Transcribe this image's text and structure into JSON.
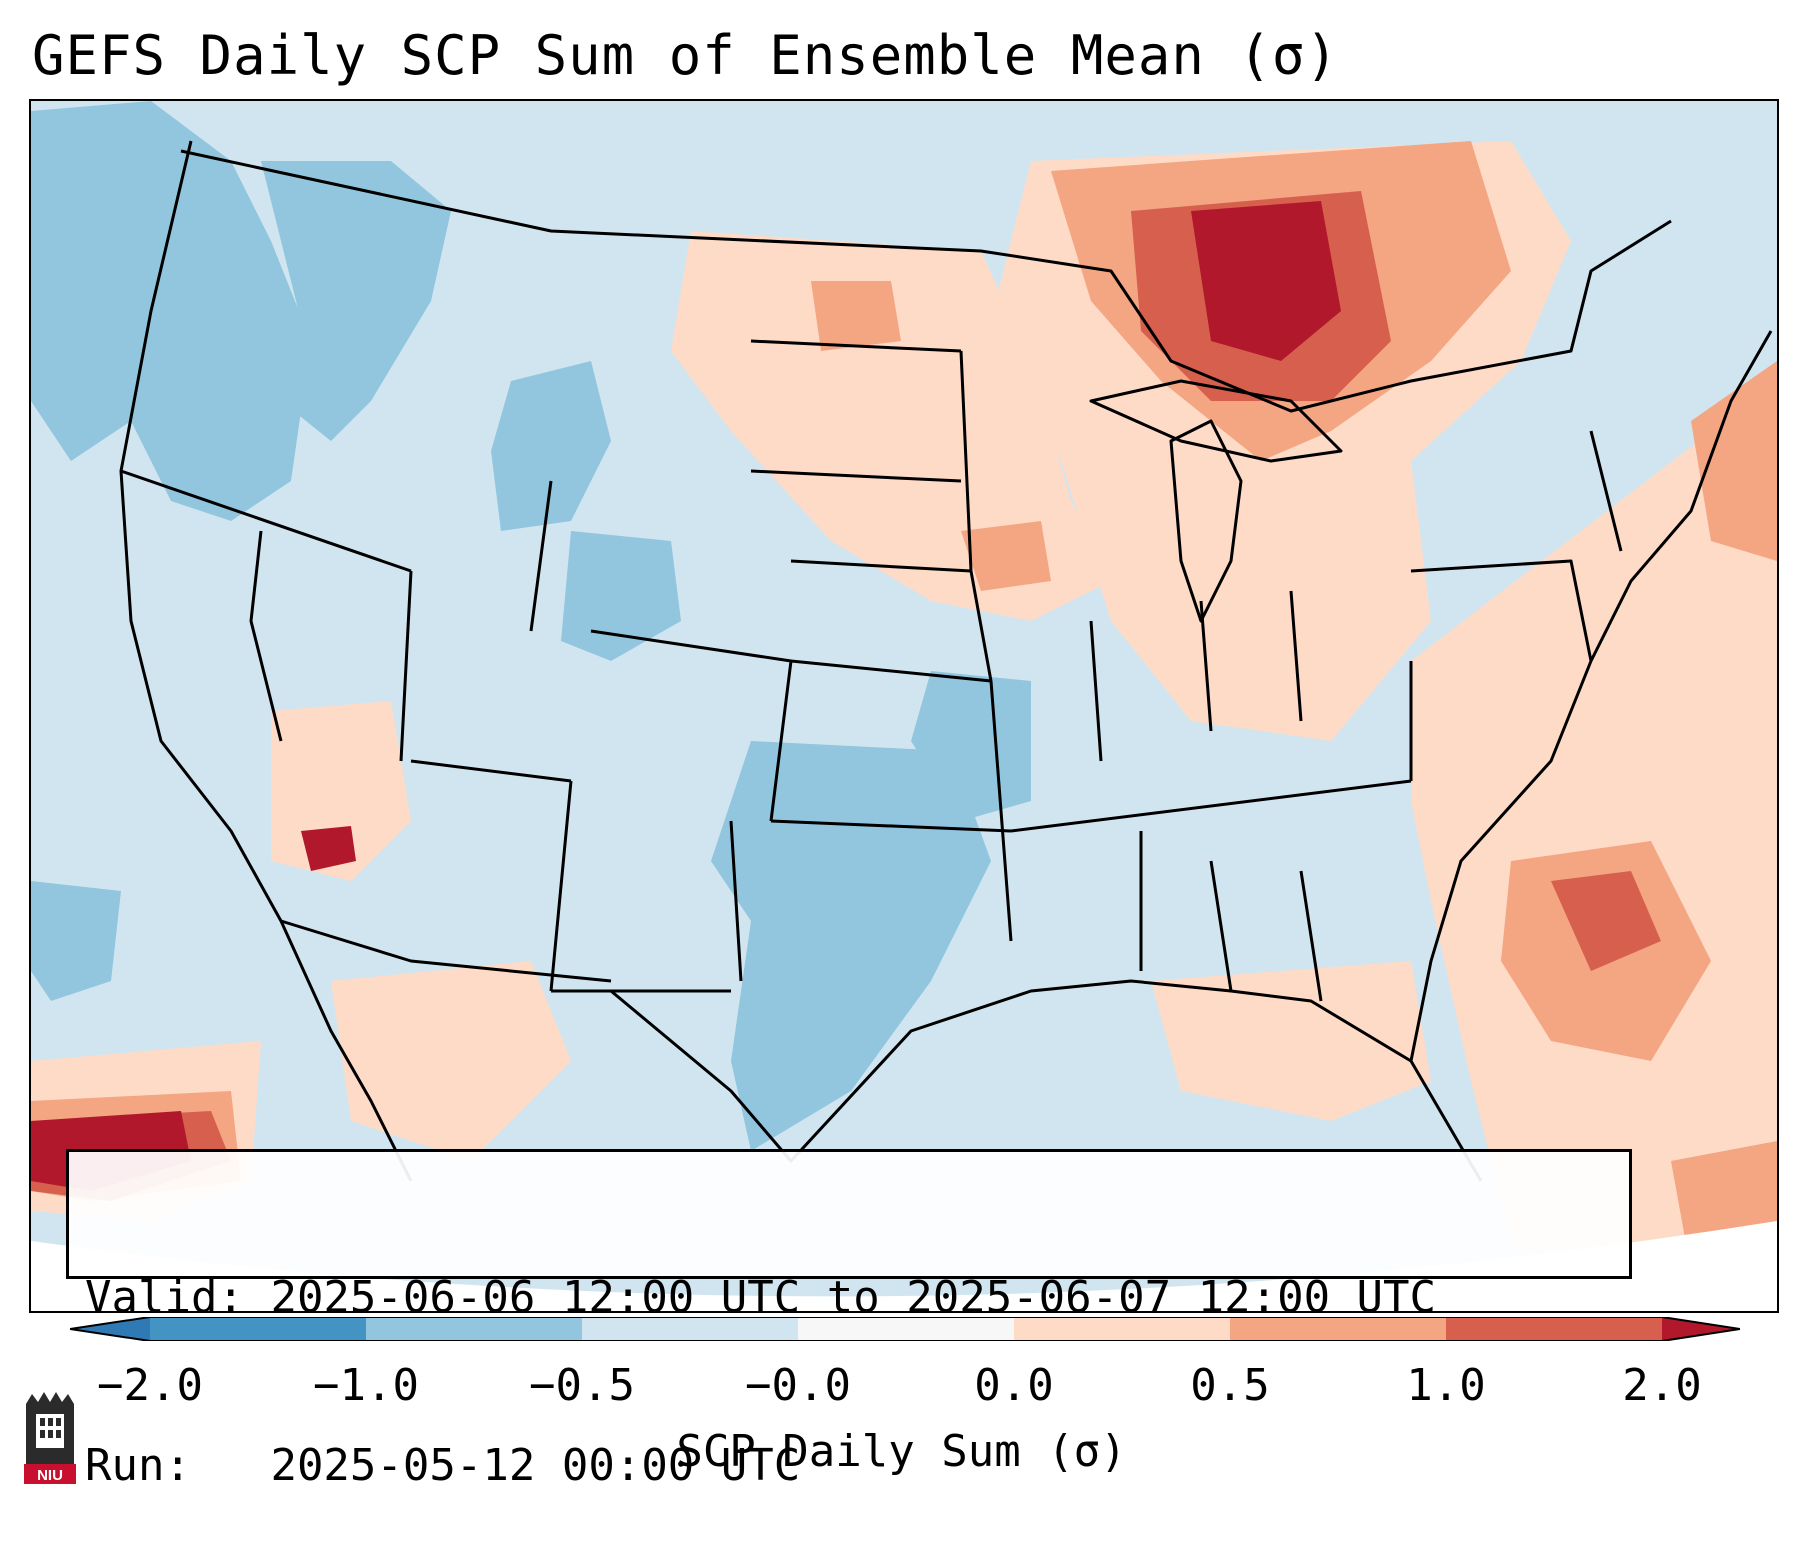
{
  "title": "GEFS Daily SCP Sum of Ensemble Mean (σ)",
  "info": {
    "valid_label": "Valid:",
    "valid_value": "2025-06-06 12:00 UTC to 2025-06-07 12:00 UTC",
    "run_label": "Run:",
    "run_value": "2025-05-12 00:00 UTC"
  },
  "colorbar": {
    "label": "SCP Daily Sum (σ)",
    "ticks": [
      "−2.0",
      "−1.0",
      "−0.5",
      "−0.0",
      "0.0",
      "0.5",
      "1.0",
      "2.0"
    ],
    "colors": {
      "extend_low": "#2f79b5",
      "bin_1": "#4393c3",
      "bin_2": "#92c5de",
      "bin_3": "#d1e5f0",
      "bin_4": "#f7f7f7",
      "bin_5": "#fddbc7",
      "bin_6": "#f4a582",
      "bin_7": "#d6604d",
      "extend_high": "#b2182b"
    }
  },
  "legend_colors": {
    "strong_positive": "#b2182b",
    "positive": "#d6604d",
    "weak_positive": "#f4a582",
    "slight_positive": "#fddbc7",
    "slight_negative": "#d1e5f0",
    "weak_negative": "#92c5de"
  },
  "logo": {
    "text": "NIU",
    "icon": "niu-logo-icon"
  }
}
